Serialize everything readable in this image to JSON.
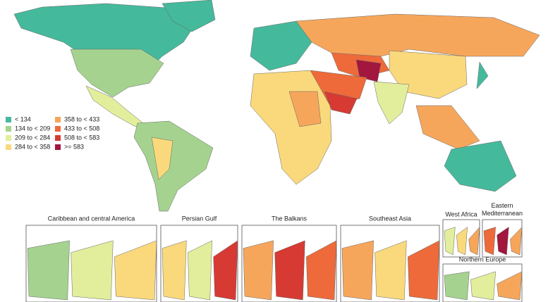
{
  "legend": {
    "items": [
      {
        "label": "< 134",
        "color": "#45b99c"
      },
      {
        "label": "134 to < 209",
        "color": "#a5d38f"
      },
      {
        "label": "209 to < 284",
        "color": "#e3ee9c"
      },
      {
        "label": "284 to < 358",
        "color": "#fad97c"
      },
      {
        "label": "358 to < 433",
        "color": "#f6a65b"
      },
      {
        "label": "433 to < 508",
        "color": "#ee6a3a"
      },
      {
        "label": "508 to < 583",
        "color": "#d63a33"
      },
      {
        "label": ">= 583",
        "color": "#a3163e"
      }
    ]
  },
  "insets": [
    {
      "title": "Caribbean and central America"
    },
    {
      "title": "Persian Gulf"
    },
    {
      "title": "The Balkans"
    },
    {
      "title": "Southeast Asia"
    },
    {
      "title": "West Africa"
    },
    {
      "title": "Eastern Mediterranean"
    },
    {
      "title": "Northern Europe"
    }
  ]
}
